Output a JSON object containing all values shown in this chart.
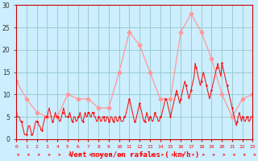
{
  "xlabel": "Vent moyen/en rafales ( km/h )",
  "bg_color": "#cceeff",
  "grid_color": "#99cccc",
  "line_mean_color": "#ff0000",
  "line_gust_color": "#ff9999",
  "ylim": [
    0,
    30
  ],
  "yticks": [
    0,
    5,
    10,
    15,
    20,
    25,
    30
  ],
  "wind_gust_x": [
    0,
    1,
    2,
    3,
    4,
    5,
    6,
    7,
    8,
    9,
    10,
    11,
    12,
    13,
    14,
    15,
    16,
    17,
    18,
    19,
    20,
    21,
    22,
    23
  ],
  "wind_gust_y": [
    13,
    9,
    6,
    5,
    5,
    10,
    9,
    9,
    7,
    7,
    15,
    24,
    21,
    15,
    9,
    9,
    24,
    28,
    24,
    18,
    10,
    5,
    9,
    10
  ],
  "wind_mean_x": [
    0.0,
    0.1,
    0.2,
    0.3,
    0.4,
    0.5,
    0.6,
    0.7,
    0.8,
    0.9,
    1.0,
    1.1,
    1.2,
    1.3,
    1.4,
    1.5,
    1.6,
    1.7,
    1.8,
    1.9,
    2.0,
    2.1,
    2.2,
    2.3,
    2.4,
    2.5,
    2.6,
    2.7,
    2.8,
    2.9,
    3.0,
    3.1,
    3.2,
    3.3,
    3.4,
    3.5,
    3.6,
    3.7,
    3.8,
    3.9,
    4.0,
    4.1,
    4.2,
    4.3,
    4.4,
    4.5,
    4.6,
    4.7,
    4.8,
    4.9,
    5.0,
    5.1,
    5.2,
    5.3,
    5.4,
    5.5,
    5.6,
    5.7,
    5.8,
    5.9,
    6.0,
    6.1,
    6.2,
    6.3,
    6.4,
    6.5,
    6.6,
    6.7,
    6.8,
    6.9,
    7.0,
    7.1,
    7.2,
    7.3,
    7.4,
    7.5,
    7.6,
    7.7,
    7.8,
    7.9,
    8.0,
    8.1,
    8.2,
    8.3,
    8.4,
    8.5,
    8.6,
    8.7,
    8.8,
    8.9,
    9.0,
    9.1,
    9.2,
    9.3,
    9.4,
    9.5,
    9.6,
    9.7,
    9.8,
    9.9,
    10.0,
    10.1,
    10.2,
    10.3,
    10.4,
    10.5,
    10.6,
    10.7,
    10.8,
    10.9,
    11.0,
    11.1,
    11.2,
    11.3,
    11.4,
    11.5,
    11.6,
    11.7,
    11.8,
    11.9,
    12.0,
    12.1,
    12.2,
    12.3,
    12.4,
    12.5,
    12.6,
    12.7,
    12.8,
    12.9,
    13.0,
    13.1,
    13.2,
    13.3,
    13.4,
    13.5,
    13.6,
    13.7,
    13.8,
    13.9,
    14.0,
    14.1,
    14.2,
    14.3,
    14.4,
    14.5,
    14.6,
    14.7,
    14.8,
    14.9,
    15.0,
    15.1,
    15.2,
    15.3,
    15.4,
    15.5,
    15.6,
    15.7,
    15.8,
    15.9,
    16.0,
    16.1,
    16.2,
    16.3,
    16.4,
    16.5,
    16.6,
    16.7,
    16.8,
    16.9,
    17.0,
    17.1,
    17.2,
    17.3,
    17.4,
    17.5,
    17.6,
    17.7,
    17.8,
    17.9,
    18.0,
    18.1,
    18.2,
    18.3,
    18.4,
    18.5,
    18.6,
    18.7,
    18.8,
    18.9,
    19.0,
    19.1,
    19.2,
    19.3,
    19.4,
    19.5,
    19.6,
    19.7,
    19.8,
    19.9,
    20.0,
    20.1,
    20.2,
    20.3,
    20.4,
    20.5,
    20.6,
    20.7,
    20.8,
    20.9,
    21.0,
    21.1,
    21.2,
    21.3,
    21.4,
    21.5,
    21.6,
    21.7,
    21.8,
    21.9,
    22.0,
    22.1,
    22.2,
    22.3,
    22.4,
    22.5,
    22.6,
    22.7,
    22.8,
    22.9,
    23.0
  ],
  "wind_mean_y": [
    6,
    5,
    5,
    5,
    4,
    4,
    3,
    2,
    1,
    1,
    1,
    2,
    3,
    3,
    2,
    1,
    1,
    2,
    3,
    4,
    4,
    4,
    3,
    3,
    2,
    2,
    3,
    4,
    5,
    5,
    5,
    6,
    7,
    6,
    5,
    4,
    4,
    5,
    6,
    5,
    5,
    5,
    4,
    4,
    5,
    6,
    7,
    6,
    5,
    5,
    5,
    5,
    6,
    5,
    4,
    4,
    5,
    5,
    4,
    4,
    5,
    5,
    6,
    5,
    4,
    4,
    5,
    6,
    5,
    5,
    6,
    6,
    5,
    5,
    6,
    6,
    5,
    5,
    4,
    4,
    5,
    5,
    4,
    4,
    5,
    5,
    4,
    4,
    5,
    5,
    4,
    4,
    5,
    5,
    4,
    4,
    5,
    5,
    4,
    4,
    5,
    5,
    4,
    4,
    4,
    5,
    5,
    6,
    7,
    8,
    9,
    8,
    7,
    6,
    5,
    4,
    4,
    5,
    6,
    7,
    8,
    7,
    6,
    5,
    4,
    4,
    5,
    6,
    5,
    4,
    5,
    5,
    4,
    4,
    5,
    6,
    5,
    5,
    4,
    4,
    5,
    5,
    6,
    7,
    8,
    9,
    9,
    8,
    7,
    6,
    5,
    6,
    7,
    8,
    9,
    10,
    11,
    10,
    9,
    8,
    9,
    10,
    11,
    12,
    13,
    12,
    11,
    10,
    9,
    10,
    11,
    12,
    13,
    14,
    17,
    16,
    15,
    14,
    13,
    12,
    13,
    14,
    15,
    14,
    13,
    12,
    11,
    10,
    9,
    10,
    11,
    12,
    13,
    14,
    15,
    16,
    17,
    16,
    15,
    14,
    17,
    16,
    15,
    14,
    13,
    12,
    11,
    10,
    9,
    8,
    7,
    6,
    5,
    4,
    3,
    4,
    5,
    6,
    5,
    4,
    5,
    5,
    4,
    4,
    5,
    5,
    4,
    4,
    5,
    5,
    5
  ]
}
